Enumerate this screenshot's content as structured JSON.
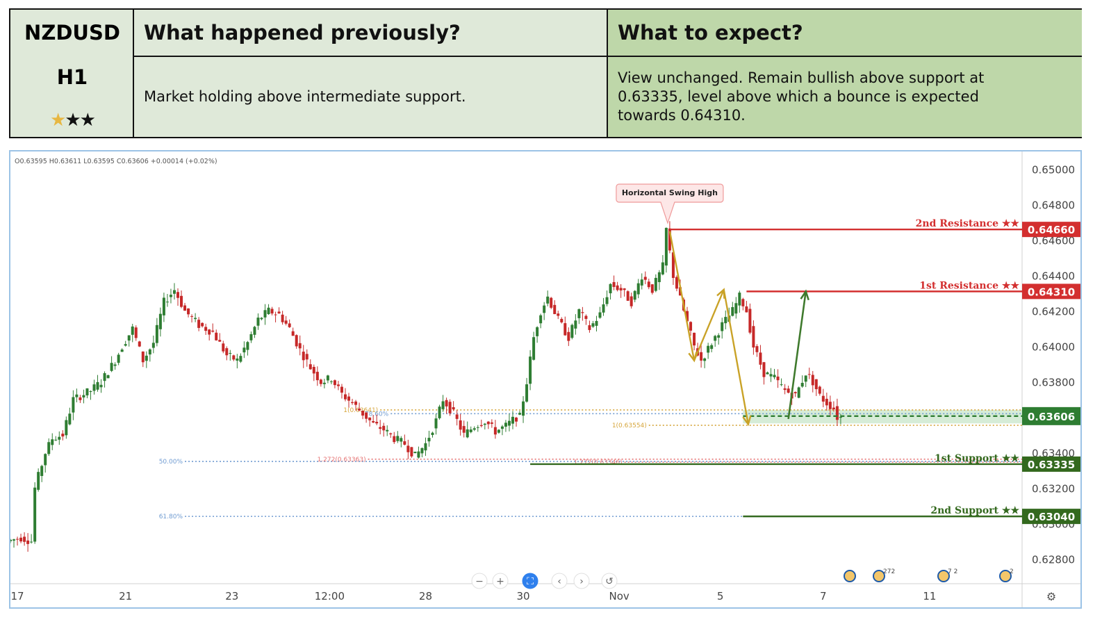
{
  "header": {
    "symbol": "NZDUSD",
    "timeframe": "H1",
    "rating": {
      "filled": 1,
      "total": 3,
      "gold": "#e7b742",
      "black": "#111111"
    },
    "previous_title": "What happened previously?",
    "previous_text": "Market holding above intermediate support.",
    "expect_title": "What to expect?",
    "expect_text_lines": [
      "View unchanged. Remain bullish above support at",
      "0.63335, level above which a bounce is expected",
      "towards 0.64310."
    ]
  },
  "chart_data": {
    "type": "candlestick",
    "ohlc_readout": "O0.63595  H0.63611  L0.63595  C0.63606  +0.00014 (+0.02%)",
    "ylim": [
      0.6266,
      0.651
    ],
    "y_ticks": [
      "0.65000",
      "0.64800",
      "0.64600",
      "0.64400",
      "0.64200",
      "0.64000",
      "0.63800",
      "0.63400",
      "0.63200",
      "0.63000",
      "0.62800"
    ],
    "y_tick_values": [
      0.65,
      0.648,
      0.646,
      0.644,
      0.642,
      0.64,
      0.638,
      0.634,
      0.632,
      0.63,
      0.628
    ],
    "x_ticks": [
      "17",
      "21",
      "23",
      "12:00",
      "28",
      "30",
      "Nov",
      "5",
      "7",
      "11"
    ],
    "x_tick_index": [
      4,
      66,
      127,
      183,
      238,
      294,
      349,
      407,
      466,
      527
    ],
    "x_range": [
      0,
      580
    ],
    "up_color": "#2e7d32",
    "down_color": "#c62828",
    "price_path": [
      [
        0,
        0.629
      ],
      [
        8,
        0.6292
      ],
      [
        14,
        0.629
      ],
      [
        16,
        0.632
      ],
      [
        22,
        0.634
      ],
      [
        26,
        0.6348
      ],
      [
        32,
        0.635
      ],
      [
        38,
        0.637
      ],
      [
        48,
        0.6375
      ],
      [
        54,
        0.638
      ],
      [
        62,
        0.6392
      ],
      [
        66,
        0.64
      ],
      [
        72,
        0.641
      ],
      [
        78,
        0.6392
      ],
      [
        84,
        0.6402
      ],
      [
        90,
        0.6425
      ],
      [
        96,
        0.6432
      ],
      [
        102,
        0.642
      ],
      [
        110,
        0.6412
      ],
      [
        118,
        0.6408
      ],
      [
        126,
        0.6395
      ],
      [
        132,
        0.6392
      ],
      [
        138,
        0.6402
      ],
      [
        144,
        0.6415
      ],
      [
        150,
        0.642
      ],
      [
        156,
        0.6418
      ],
      [
        162,
        0.641
      ],
      [
        168,
        0.6398
      ],
      [
        174,
        0.6388
      ],
      [
        180,
        0.638
      ],
      [
        186,
        0.6382
      ],
      [
        192,
        0.6373
      ],
      [
        198,
        0.6368
      ],
      [
        204,
        0.6362
      ],
      [
        210,
        0.6356
      ],
      [
        216,
        0.6353
      ],
      [
        222,
        0.6348
      ],
      [
        228,
        0.6345
      ],
      [
        234,
        0.6338
      ],
      [
        240,
        0.6345
      ],
      [
        246,
        0.6358
      ],
      [
        250,
        0.637
      ],
      [
        256,
        0.6362
      ],
      [
        262,
        0.635
      ],
      [
        268,
        0.6355
      ],
      [
        274,
        0.6358
      ],
      [
        280,
        0.6352
      ],
      [
        286,
        0.6355
      ],
      [
        292,
        0.636
      ],
      [
        294,
        0.636
      ],
      [
        298,
        0.638
      ],
      [
        302,
        0.6405
      ],
      [
        306,
        0.642
      ],
      [
        310,
        0.6428
      ],
      [
        316,
        0.6415
      ],
      [
        322,
        0.6405
      ],
      [
        328,
        0.642
      ],
      [
        334,
        0.641
      ],
      [
        340,
        0.6418
      ],
      [
        346,
        0.6435
      ],
      [
        352,
        0.6432
      ],
      [
        358,
        0.6425
      ],
      [
        364,
        0.644
      ],
      [
        370,
        0.6432
      ],
      [
        376,
        0.6445
      ],
      [
        378,
        0.6466
      ],
      [
        382,
        0.644
      ],
      [
        388,
        0.642
      ],
      [
        394,
        0.64
      ],
      [
        398,
        0.6392
      ],
      [
        404,
        0.6402
      ],
      [
        410,
        0.6412
      ],
      [
        416,
        0.642
      ],
      [
        420,
        0.6428
      ],
      [
        424,
        0.642
      ],
      [
        428,
        0.64
      ],
      [
        434,
        0.6385
      ],
      [
        440,
        0.6382
      ],
      [
        446,
        0.6375
      ],
      [
        452,
        0.6372
      ],
      [
        458,
        0.6385
      ],
      [
        462,
        0.638
      ],
      [
        466,
        0.6372
      ],
      [
        470,
        0.6368
      ],
      [
        474,
        0.6365
      ],
      [
        476,
        0.636
      ]
    ],
    "levels": [
      {
        "name": "2nd Resistance",
        "label": "2nd Resistance ★★",
        "value": 0.6466,
        "price_tag": "0.64660",
        "color": "#d32f2f",
        "from_index": 378
      },
      {
        "name": "1st Resistance",
        "label": "1st Resistance ★★",
        "value": 0.6431,
        "price_tag": "0.64310",
        "color": "#d32f2f",
        "from_index": 422
      },
      {
        "name": "1st Support",
        "label": "1st Support ★★",
        "value": 0.63335,
        "price_tag": "0.63335",
        "color": "#33691e",
        "from_index": 298
      },
      {
        "name": "2nd Support",
        "label": "2nd Support ★★",
        "value": 0.6304,
        "price_tag": "0.63040",
        "color": "#33691e",
        "from_index": 420
      }
    ],
    "current_price": {
      "value": 0.63606,
      "price_tag": "0.63606",
      "color": "#2e7d32",
      "from_index": 420
    },
    "fib_lines": [
      {
        "label": "1(0.63641)",
        "value": 0.63641,
        "color": "#d6a53a",
        "from_index": 212,
        "to_index": 580
      },
      {
        "label": "78.60%",
        "value": 0.6362,
        "color": "#6f9bd1",
        "from_index": 218,
        "to_index": 580
      },
      {
        "label": "1(0.63554)",
        "value": 0.63554,
        "color": "#d6a53a",
        "from_index": 366,
        "to_index": 580
      },
      {
        "label": "50.00%",
        "value": 0.6335,
        "color": "#6f9bd1",
        "from_index": 100,
        "to_index": 580
      },
      {
        "label": "1.272(0.63363)",
        "value": 0.63363,
        "color": "#e57373",
        "from_index": 205,
        "to_index": 580
      },
      {
        "label": "1.272(0.63346)",
        "value": 0.63346,
        "color": "#e57373",
        "from_index": 352,
        "to_index": 580
      },
      {
        "label": "61.80%",
        "value": 0.6304,
        "color": "#6f9bd1",
        "from_index": 100,
        "to_index": 420
      }
    ],
    "support_zone": {
      "from": 0.63565,
      "to": 0.63641,
      "from_index": 420,
      "color": "#c8e6c9"
    },
    "callout": {
      "text": "Horizontal Swing High",
      "index": 378,
      "value": 0.6466
    },
    "abc_arrows": [
      {
        "from": [
          378,
          0.6465
        ],
        "to": [
          392,
          0.6392
        ],
        "color": "#c9a227"
      },
      {
        "from": [
          392,
          0.6392
        ],
        "to": [
          409,
          0.6432
        ],
        "color": "#c9a227"
      },
      {
        "from": [
          409,
          0.6432
        ],
        "to": [
          423,
          0.6356
        ],
        "color": "#c9a227"
      }
    ],
    "forecast_arrow": {
      "from": [
        446,
        0.6359
      ],
      "to": [
        456,
        0.6431
      ],
      "color": "#3f7a2d"
    },
    "toolbar_icons": [
      "zoom-out-icon",
      "zoom-in-icon",
      "fit-screen-icon",
      "scroll-left-icon",
      "scroll-right-icon",
      "reset-icon"
    ],
    "toolbar_glyphs": [
      "−",
      "+",
      "⛶",
      "‹",
      "›",
      "↺"
    ],
    "event_badges": [
      "272",
      "7",
      "2"
    ],
    "settings_glyph": "⚙"
  }
}
